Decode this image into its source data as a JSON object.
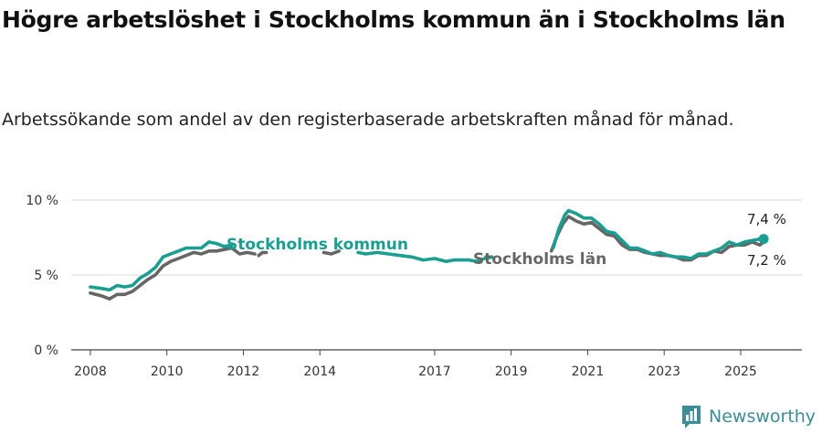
{
  "title": "Högre arbetslöshet i Stockholms kommun än i Stockholms län",
  "subtitle": "Arbetssökande som andel av den registerbaserade arbetskraften månad för månad.",
  "brand": {
    "name": "Newsworthy",
    "color": "#3c8d96"
  },
  "chart_data": {
    "type": "line",
    "title": "Högre arbetslöshet i Stockholms kommun än i Stockholms län",
    "xlabel": "",
    "ylabel": "",
    "x_range": [
      2007.5,
      2026.6
    ],
    "ylim": [
      0,
      10
    ],
    "y_ticks": [
      0,
      5,
      10
    ],
    "y_tick_labels": [
      "0 %",
      "5 %",
      "10 %"
    ],
    "x_ticks": [
      2008,
      2010,
      2012,
      2014,
      2017,
      2019,
      2021,
      2023,
      2025
    ],
    "x_tick_labels": [
      "2008",
      "2010",
      "2012",
      "2014",
      "2017",
      "2019",
      "2021",
      "2023",
      "2025"
    ],
    "grid": true,
    "legend": "inline labels on lines",
    "end_labels": [
      "7,4 %",
      "7,2 %"
    ],
    "series": [
      {
        "name": "Stockholms län",
        "color": "#666666",
        "segments": [
          [
            [
              2008.0,
              3.8
            ],
            [
              2008.3,
              3.6
            ],
            [
              2008.5,
              3.4
            ],
            [
              2008.7,
              3.7
            ],
            [
              2008.9,
              3.7
            ],
            [
              2009.1,
              3.9
            ],
            [
              2009.3,
              4.3
            ],
            [
              2009.5,
              4.7
            ],
            [
              2009.7,
              5.0
            ],
            [
              2009.9,
              5.6
            ],
            [
              2010.1,
              5.9
            ],
            [
              2010.3,
              6.1
            ],
            [
              2010.5,
              6.3
            ],
            [
              2010.7,
              6.5
            ],
            [
              2010.9,
              6.4
            ],
            [
              2011.1,
              6.6
            ],
            [
              2011.3,
              6.6
            ],
            [
              2011.5,
              6.7
            ],
            [
              2011.7,
              6.8
            ],
            [
              2011.9,
              6.4
            ],
            [
              2012.1,
              6.5
            ],
            [
              2012.3,
              6.4
            ]
          ],
          [
            [
              2012.4,
              6.3
            ],
            [
              2012.5,
              6.5
            ],
            [
              2012.6,
              6.5
            ]
          ],
          [
            [
              2014.1,
              6.5
            ],
            [
              2014.3,
              6.4
            ],
            [
              2014.5,
              6.6
            ]
          ],
          [
            [
              2020.05,
              6.6
            ],
            [
              2020.2,
              7.6
            ],
            [
              2020.35,
              8.4
            ],
            [
              2020.5,
              8.9
            ],
            [
              2020.7,
              8.6
            ],
            [
              2020.9,
              8.4
            ],
            [
              2021.1,
              8.5
            ],
            [
              2021.3,
              8.1
            ],
            [
              2021.5,
              7.7
            ],
            [
              2021.7,
              7.6
            ],
            [
              2021.9,
              7.0
            ],
            [
              2022.1,
              6.7
            ],
            [
              2022.3,
              6.7
            ],
            [
              2022.5,
              6.5
            ],
            [
              2022.7,
              6.4
            ],
            [
              2022.9,
              6.3
            ],
            [
              2023.1,
              6.3
            ],
            [
              2023.3,
              6.2
            ],
            [
              2023.5,
              6.0
            ],
            [
              2023.7,
              6.0
            ],
            [
              2023.9,
              6.3
            ],
            [
              2024.1,
              6.3
            ],
            [
              2024.3,
              6.6
            ],
            [
              2024.5,
              6.5
            ],
            [
              2024.7,
              6.9
            ],
            [
              2024.9,
              7.0
            ],
            [
              2025.1,
              7.0
            ],
            [
              2025.3,
              7.2
            ],
            [
              2025.5,
              7.0
            ],
            [
              2025.6,
              7.2
            ]
          ]
        ]
      },
      {
        "name": "Stockholms kommun",
        "color": "#1a9e8f",
        "segments": [
          [
            [
              2008.0,
              4.2
            ],
            [
              2008.3,
              4.1
            ],
            [
              2008.5,
              4.0
            ],
            [
              2008.7,
              4.3
            ],
            [
              2008.9,
              4.2
            ],
            [
              2009.1,
              4.3
            ],
            [
              2009.3,
              4.8
            ],
            [
              2009.5,
              5.1
            ],
            [
              2009.7,
              5.5
            ],
            [
              2009.9,
              6.2
            ],
            [
              2010.1,
              6.4
            ],
            [
              2010.3,
              6.6
            ],
            [
              2010.5,
              6.8
            ],
            [
              2010.7,
              6.8
            ],
            [
              2010.9,
              6.8
            ],
            [
              2011.1,
              7.2
            ],
            [
              2011.3,
              7.1
            ],
            [
              2011.5,
              6.9
            ],
            [
              2011.7,
              7.0
            ]
          ],
          [
            [
              2015.0,
              6.5
            ],
            [
              2015.2,
              6.4
            ],
            [
              2015.5,
              6.5
            ],
            [
              2015.8,
              6.4
            ],
            [
              2016.1,
              6.3
            ],
            [
              2016.4,
              6.2
            ],
            [
              2016.7,
              6.0
            ],
            [
              2017.0,
              6.1
            ],
            [
              2017.3,
              5.9
            ],
            [
              2017.5,
              6.0
            ],
            [
              2017.7,
              6.0
            ],
            [
              2017.9,
              6.0
            ],
            [
              2018.1,
              5.9
            ],
            [
              2018.3,
              6.1
            ],
            [
              2018.5,
              6.2
            ]
          ],
          [
            [
              2020.1,
              6.8
            ],
            [
              2020.25,
              8.1
            ],
            [
              2020.4,
              9.0
            ],
            [
              2020.5,
              9.3
            ],
            [
              2020.7,
              9.1
            ],
            [
              2020.9,
              8.8
            ],
            [
              2021.1,
              8.8
            ],
            [
              2021.3,
              8.4
            ],
            [
              2021.5,
              7.9
            ],
            [
              2021.7,
              7.8
            ],
            [
              2021.9,
              7.3
            ],
            [
              2022.1,
              6.8
            ],
            [
              2022.3,
              6.8
            ],
            [
              2022.5,
              6.6
            ],
            [
              2022.7,
              6.4
            ],
            [
              2022.9,
              6.5
            ],
            [
              2023.1,
              6.3
            ],
            [
              2023.3,
              6.2
            ],
            [
              2023.5,
              6.2
            ],
            [
              2023.7,
              6.1
            ],
            [
              2023.9,
              6.4
            ],
            [
              2024.1,
              6.4
            ],
            [
              2024.3,
              6.6
            ],
            [
              2024.5,
              6.8
            ],
            [
              2024.7,
              7.2
            ],
            [
              2024.9,
              7.0
            ],
            [
              2025.1,
              7.2
            ],
            [
              2025.3,
              7.3
            ],
            [
              2025.5,
              7.4
            ],
            [
              2025.6,
              7.4
            ]
          ]
        ]
      }
    ]
  }
}
